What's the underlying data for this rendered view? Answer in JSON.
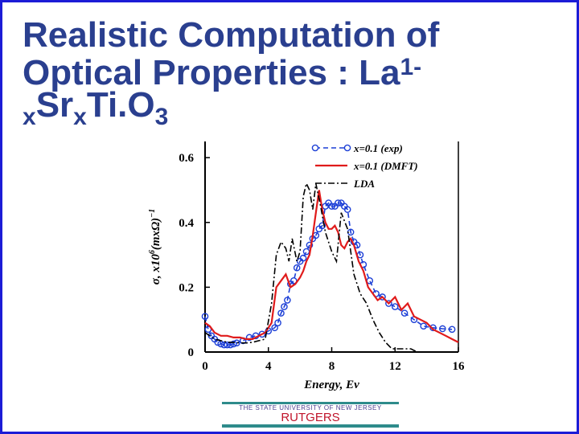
{
  "title": {
    "line1": "Realistic Computation of",
    "line2_main": "Optical Properties : La",
    "line2_sub": "1-",
    "line3_x1": "x",
    "line3_sr": "Sr",
    "line3_x2": "x",
    "line3_ti": "Ti.",
    "line3_o": "O",
    "line3_3": "3"
  },
  "footer": {
    "university": "THE STATE UNIVERSITY OF NEW JERSEY",
    "brand": "RUTGERS",
    "accent_color": "#2e8b8b",
    "brand_color": "#c0142a"
  },
  "chart_data": {
    "type": "line",
    "xlabel": "Energy, Ev",
    "ylabel_prefix": "σ,  x10",
    "ylabel_power": "6",
    "ylabel_unit": "(mxΩ)",
    "ylabel_unit_power": "−1",
    "xlim": [
      0,
      16
    ],
    "ylim": [
      0,
      0.65
    ],
    "x_ticks": [
      "0",
      "4",
      "8",
      "12",
      "16"
    ],
    "y_ticks": [
      "0",
      "0.2",
      "0.4",
      "0.6"
    ],
    "legend_position": "top-right",
    "series": [
      {
        "name": "x=0.1 (exp)",
        "color": "#1c3fd6",
        "style": "dashed-circles",
        "x": [
          0.0,
          0.2,
          0.4,
          0.6,
          0.8,
          1.0,
          1.2,
          1.4,
          1.6,
          1.8,
          2.0,
          2.4,
          2.8,
          3.2,
          3.6,
          4.0,
          4.4,
          4.6,
          4.8,
          5.0,
          5.2,
          5.4,
          5.6,
          5.8,
          6.0,
          6.2,
          6.4,
          6.6,
          6.8,
          7.0,
          7.2,
          7.4,
          7.6,
          7.8,
          8.0,
          8.2,
          8.4,
          8.6,
          8.8,
          9.0,
          9.2,
          9.4,
          9.6,
          9.8,
          10.0,
          10.4,
          10.8,
          11.2,
          11.6,
          12.0,
          12.6,
          13.2,
          13.8,
          14.4,
          15.0,
          15.6
        ],
        "y": [
          0.11,
          0.07,
          0.05,
          0.04,
          0.03,
          0.025,
          0.022,
          0.022,
          0.022,
          0.025,
          0.028,
          0.035,
          0.045,
          0.05,
          0.055,
          0.065,
          0.075,
          0.09,
          0.12,
          0.14,
          0.16,
          0.21,
          0.22,
          0.26,
          0.28,
          0.29,
          0.31,
          0.33,
          0.35,
          0.36,
          0.38,
          0.39,
          0.45,
          0.46,
          0.45,
          0.45,
          0.46,
          0.46,
          0.45,
          0.44,
          0.37,
          0.34,
          0.33,
          0.3,
          0.27,
          0.22,
          0.18,
          0.17,
          0.15,
          0.14,
          0.12,
          0.1,
          0.08,
          0.075,
          0.072,
          0.07
        ]
      },
      {
        "name": "x=0.1 (DMFT)",
        "color": "#e01b1b",
        "style": "solid",
        "x": [
          0.0,
          0.3,
          0.6,
          1.0,
          1.4,
          1.8,
          2.2,
          2.6,
          3.0,
          3.4,
          3.8,
          4.2,
          4.5,
          4.8,
          5.1,
          5.4,
          5.7,
          6.0,
          6.2,
          6.4,
          6.6,
          6.8,
          7.0,
          7.2,
          7.4,
          7.6,
          7.8,
          8.0,
          8.2,
          8.4,
          8.6,
          8.8,
          9.0,
          9.2,
          9.4,
          9.7,
          10.0,
          10.3,
          10.6,
          10.9,
          11.2,
          11.6,
          12.0,
          12.4,
          12.8,
          13.2,
          13.6,
          14.0,
          14.4,
          14.8,
          15.2,
          15.6,
          16.0
        ],
        "y": [
          0.09,
          0.08,
          0.06,
          0.05,
          0.05,
          0.045,
          0.045,
          0.04,
          0.04,
          0.05,
          0.06,
          0.09,
          0.2,
          0.22,
          0.24,
          0.2,
          0.21,
          0.23,
          0.25,
          0.28,
          0.3,
          0.36,
          0.43,
          0.5,
          0.44,
          0.4,
          0.38,
          0.38,
          0.39,
          0.37,
          0.33,
          0.32,
          0.34,
          0.35,
          0.33,
          0.28,
          0.25,
          0.2,
          0.18,
          0.16,
          0.17,
          0.15,
          0.17,
          0.13,
          0.15,
          0.11,
          0.1,
          0.09,
          0.07,
          0.06,
          0.05,
          0.04,
          0.03
        ]
      },
      {
        "name": "LDA",
        "color": "#000000",
        "style": "dashdot",
        "x": [
          0.0,
          0.3,
          0.6,
          1.0,
          1.4,
          1.8,
          2.2,
          2.6,
          3.0,
          3.4,
          3.8,
          4.2,
          4.5,
          4.8,
          5.1,
          5.3,
          5.5,
          5.8,
          6.0,
          6.2,
          6.4,
          6.6,
          6.8,
          7.0,
          7.3,
          7.6,
          8.0,
          8.3,
          8.6,
          9.0,
          9.4,
          9.8,
          10.2,
          10.6,
          11.0,
          11.4,
          11.8,
          12.2,
          12.6,
          13.0,
          13.4,
          14.0
        ],
        "y": [
          0.06,
          0.05,
          0.04,
          0.035,
          0.03,
          0.03,
          0.028,
          0.028,
          0.03,
          0.035,
          0.04,
          0.15,
          0.3,
          0.34,
          0.32,
          0.28,
          0.35,
          0.28,
          0.31,
          0.48,
          0.52,
          0.5,
          0.44,
          0.52,
          0.45,
          0.37,
          0.31,
          0.28,
          0.43,
          0.38,
          0.24,
          0.18,
          0.15,
          0.1,
          0.06,
          0.03,
          0.01,
          0.01,
          0.01,
          0.01,
          0.0,
          0.0
        ]
      }
    ]
  }
}
